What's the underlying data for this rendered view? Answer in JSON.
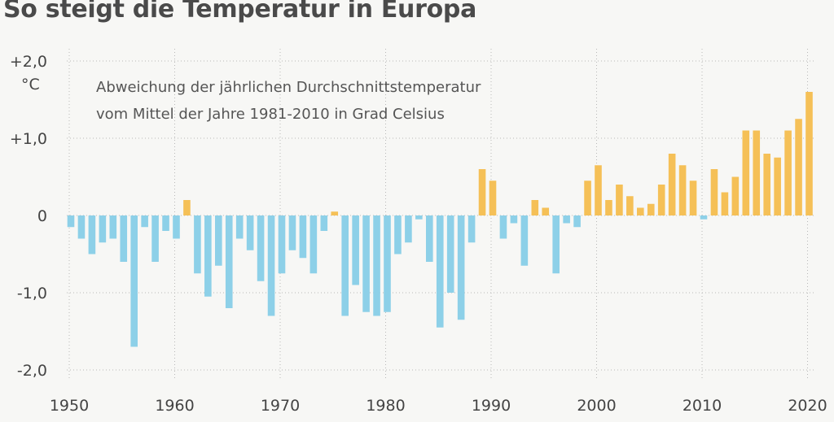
{
  "chart_data": {
    "type": "bar",
    "title": "So steigt die Temperatur in Europa",
    "subtitle_lines": [
      "Abweichung der jährlichen Durchschnittstemperatur",
      "vom Mittel der Jahre 1981-2010 in Grad Celsius"
    ],
    "ylabel": "°C",
    "ylim": [
      -2.0,
      2.0
    ],
    "y_ticks": [
      {
        "value": 2.0,
        "label": "+2,0"
      },
      {
        "value": 1.0,
        "label": "+1,0"
      },
      {
        "value": 0.0,
        "label": "0"
      },
      {
        "value": -1.0,
        "label": "-1,0"
      },
      {
        "value": -2.0,
        "label": "-2,0"
      }
    ],
    "x_ticks": [
      {
        "value": 1950,
        "label": "1950"
      },
      {
        "value": 1960,
        "label": "1960"
      },
      {
        "value": 1970,
        "label": "1970"
      },
      {
        "value": 1980,
        "label": "1980"
      },
      {
        "value": 1990,
        "label": "1990"
      },
      {
        "value": 2000,
        "label": "2000"
      },
      {
        "value": 2010,
        "label": "2010"
      },
      {
        "value": 2020,
        "label": "2020"
      }
    ],
    "grid": true,
    "colors": {
      "negative": "#8dd0e8",
      "positive": "#f5c057"
    },
    "years": [
      1950,
      1951,
      1952,
      1953,
      1954,
      1955,
      1956,
      1957,
      1958,
      1959,
      1960,
      1961,
      1962,
      1963,
      1964,
      1965,
      1966,
      1967,
      1968,
      1969,
      1970,
      1971,
      1972,
      1973,
      1974,
      1975,
      1976,
      1977,
      1978,
      1979,
      1980,
      1981,
      1982,
      1983,
      1984,
      1985,
      1986,
      1987,
      1988,
      1989,
      1990,
      1991,
      1992,
      1993,
      1994,
      1995,
      1996,
      1997,
      1998,
      1999,
      2000,
      2001,
      2002,
      2003,
      2004,
      2005,
      2006,
      2007,
      2008,
      2009,
      2010,
      2011,
      2012,
      2013,
      2014,
      2015,
      2016,
      2017,
      2018,
      2019,
      2020
    ],
    "values": [
      -0.15,
      -0.3,
      -0.5,
      -0.35,
      -0.3,
      -0.6,
      -1.7,
      -0.15,
      -0.6,
      -0.2,
      -0.3,
      0.2,
      -0.75,
      -1.05,
      -0.65,
      -1.2,
      -0.3,
      -0.45,
      -0.85,
      -1.3,
      -0.75,
      -0.45,
      -0.55,
      -0.75,
      -0.2,
      0.05,
      -1.3,
      -0.9,
      -1.25,
      -1.3,
      -1.25,
      -0.5,
      -0.35,
      -0.05,
      -0.6,
      -1.45,
      -1.0,
      -1.35,
      -0.35,
      0.6,
      0.45,
      -0.3,
      -0.1,
      -0.65,
      0.2,
      0.1,
      -0.75,
      -0.1,
      -0.15,
      0.45,
      0.65,
      0.2,
      0.4,
      0.25,
      0.1,
      0.15,
      0.4,
      0.8,
      0.65,
      0.45,
      -0.05,
      0.6,
      0.3,
      0.5,
      1.1,
      1.1,
      0.8,
      0.75,
      1.1,
      1.25,
      1.6
    ]
  }
}
